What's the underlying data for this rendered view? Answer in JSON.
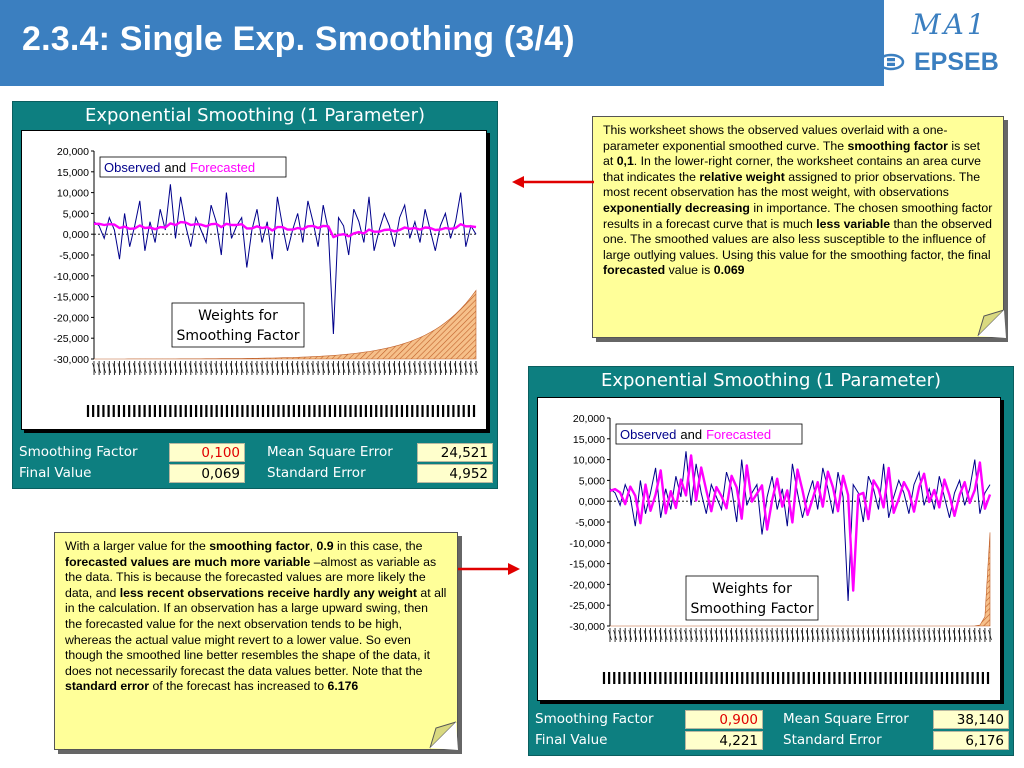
{
  "slide": {
    "title": "2.3.4: Single Exp. Smoothing (3/4)",
    "logo_top": "MA1",
    "logo_bottom": "EPSEB"
  },
  "colors": {
    "header": "#3b7fc0",
    "panel": "#0d7f80",
    "note": "#ffff99",
    "observed": "#00008b",
    "forecast": "#ff00ff",
    "arrow": "#e00000"
  },
  "panel_top": {
    "title": "Exponential Smoothing (1 Parameter)",
    "legend_observed": "Observed",
    "legend_and": "and",
    "legend_forecast": "Forecasted",
    "weights_line1": "Weights for",
    "weights_line2": "Smoothing Factor",
    "stats": {
      "smoothing_factor_label": "Smoothing Factor",
      "smoothing_factor_value": "0,100",
      "final_value_label": "Final Value",
      "final_value_value": "0,069",
      "mse_label": "Mean Square Error",
      "mse_value": "24,521",
      "se_label": "Standard Error",
      "se_value": "4,952"
    }
  },
  "panel_bottom": {
    "title": "Exponential Smoothing (1 Parameter)",
    "legend_observed": "Observed",
    "legend_and": "and",
    "legend_forecast": "Forecasted",
    "weights_line1": "Weights for",
    "weights_line2": "Smoothing Factor",
    "stats": {
      "smoothing_factor_label": "Smoothing Factor",
      "smoothing_factor_value": "0,900",
      "final_value_label": "Final Value",
      "final_value_value": "4,221",
      "mse_label": "Mean Square Error",
      "mse_value": "38,140",
      "se_label": "Standard Error",
      "se_value": "6,176"
    }
  },
  "chart_data": [
    {
      "type": "line",
      "title": "",
      "y_ticks": [
        "20,000",
        "15,000",
        "10,000",
        "5,000",
        "0,000",
        "-5,000",
        "-10,000",
        "-15,000",
        "-20,000",
        "-25,000",
        "-30,000"
      ],
      "ylim": [
        -30,
        20
      ],
      "smoothing_factor": 0.1,
      "series": [
        {
          "name": "Observed",
          "values": [
            3,
            2,
            -1,
            4,
            1,
            -6,
            5,
            -3,
            2,
            8,
            -4,
            3,
            -2,
            6,
            1,
            12,
            -1,
            9,
            2,
            -3,
            4,
            1,
            -2,
            7,
            3,
            -5,
            10,
            -1,
            2,
            4,
            -8,
            1,
            6,
            -2,
            3,
            -6,
            9,
            2,
            -4,
            1,
            5,
            -2,
            8,
            3,
            -3,
            7,
            1,
            -24,
            4,
            2,
            -5,
            6,
            3,
            -2,
            9,
            -4,
            1,
            5,
            2,
            -3,
            4,
            7,
            -1,
            3,
            -2,
            6,
            1,
            -4,
            2,
            5,
            -1,
            3,
            10,
            -3,
            2,
            0
          ]
        },
        {
          "name": "Forecasted",
          "values": [
            2.5,
            2.5,
            2.2,
            2.4,
            2.3,
            1.5,
            1.8,
            1.3,
            1.4,
            2.1,
            1.5,
            1.6,
            1.2,
            1.7,
            1.6,
            2.6,
            2.2,
            2.9,
            2.8,
            2.2,
            2.4,
            2.3,
            1.9,
            2.4,
            2.5,
            1.7,
            2.5,
            2.2,
            2.2,
            2.4,
            1.4,
            1.4,
            1.9,
            1.5,
            1.7,
            0.9,
            1.7,
            1.7,
            1.1,
            1.1,
            1.5,
            1.2,
            1.9,
            2,
            1.5,
            2,
            1.9,
            -0.7,
            -0.2,
            0,
            -0.5,
            0.2,
            0.5,
            0.2,
            1.1,
            0.6,
            0.6,
            1,
            1.1,
            0.7,
            1,
            1.6,
            1.3,
            1.5,
            1.1,
            1.6,
            1.5,
            1,
            1.1,
            1.5,
            1.3,
            1.5,
            2.4,
            1.9,
            1.9,
            1.7
          ]
        }
      ]
    },
    {
      "type": "line",
      "title": "",
      "y_ticks": [
        "20,000",
        "15,000",
        "10,000",
        "5,000",
        "0,000",
        "-5,000",
        "-10,000",
        "-15,000",
        "-20,000",
        "-25,000",
        "-30,000"
      ],
      "ylim": [
        -30,
        20
      ],
      "smoothing_factor": 0.9,
      "series": [
        {
          "name": "Observed",
          "values": [
            3,
            2,
            -1,
            4,
            1,
            -6,
            5,
            -3,
            2,
            8,
            -4,
            3,
            -2,
            6,
            1,
            12,
            -1,
            9,
            2,
            -3,
            4,
            1,
            -2,
            7,
            3,
            -5,
            10,
            -1,
            2,
            4,
            -8,
            1,
            6,
            -2,
            3,
            -6,
            9,
            2,
            -4,
            1,
            5,
            -2,
            8,
            3,
            -3,
            7,
            1,
            -24,
            4,
            2,
            -5,
            6,
            3,
            -2,
            9,
            -4,
            1,
            5,
            2,
            -3,
            4,
            7,
            -1,
            3,
            -2,
            6,
            1,
            -4,
            2,
            5,
            -1,
            3,
            10,
            -3,
            2,
            4
          ]
        },
        {
          "name": "Forecasted",
          "values": [
            2.5,
            2.9,
            2.1,
            -0.7,
            3.5,
            1.3,
            -5.3,
            4,
            -2.3,
            1.6,
            7.4,
            -2.9,
            2.4,
            -1.6,
            5.2,
            1.4,
            11,
            0.2,
            8.1,
            2.6,
            -2.4,
            3.4,
            1.2,
            -1.7,
            6.1,
            3.3,
            -4.2,
            8.6,
            -0.1,
            1.8,
            3.8,
            -6.8,
            0.2,
            5.4,
            -1.3,
            2.6,
            -5.1,
            7.6,
            2.6,
            -3.3,
            0.6,
            4.6,
            -1.3,
            7.1,
            3.4,
            -2.4,
            6.1,
            1.5,
            -21.5,
            1.5,
            2,
            -4.3,
            5,
            3,
            -1.5,
            8,
            -2.8,
            0.6,
            4.6,
            2.3,
            -2.5,
            3.4,
            6.6,
            -0.2,
            2.7,
            -1.5,
            5.2,
            1.4,
            -3.5,
            1.5,
            4.6,
            -0.4,
            2.7,
            9.3,
            -1.8,
            1.6
          ]
        }
      ]
    }
  ],
  "note_top": {
    "segments": [
      {
        "t": "This worksheet shows the observed values overlaid with a one-parameter exponential smoothed curve. The ",
        "b": false
      },
      {
        "t": "smoothing factor",
        "b": true
      },
      {
        "t": " is set at ",
        "b": false
      },
      {
        "t": "0,1",
        "b": true
      },
      {
        "t": ". In the lower-right corner, the worksheet contains an area curve that indicates the ",
        "b": false
      },
      {
        "t": "relative weight",
        "b": true
      },
      {
        "t": " assigned to prior observations. The most recent observation has the most weight, with observations ",
        "b": false
      },
      {
        "t": "exponentially decreasing",
        "b": true
      },
      {
        "t": " in importance. The chosen smoothing factor results in a forecast curve that is much ",
        "b": false
      },
      {
        "t": "less variable",
        "b": true
      },
      {
        "t": " than the observed one. The smoothed values are also less susceptible to the influence of large outlying values. Using this value for the smoothing factor, the final ",
        "b": false
      },
      {
        "t": "forecasted",
        "b": true
      },
      {
        "t": " value is ",
        "b": false
      },
      {
        "t": "0.069",
        "b": true
      }
    ]
  },
  "note_bottom": {
    "segments": [
      {
        "t": "With a larger value for the ",
        "b": false
      },
      {
        "t": "smoothing factor",
        "b": true
      },
      {
        "t": ", ",
        "b": false
      },
      {
        "t": "0.9",
        "b": true
      },
      {
        "t": " in this case, the ",
        "b": false
      },
      {
        "t": "forecasted values are much more variable",
        "b": true
      },
      {
        "t": " –almost as variable as the data. This is because the forecasted values are more likely the data, and ",
        "b": false
      },
      {
        "t": "less recent observations receive hardly any weight",
        "b": true
      },
      {
        "t": " at all in the calculation. If an observation has a large upward swing, then the forecasted value for the next observation tends to be high, whereas the actual value might revert to a lower value. So even though the smoothed line better resembles the shape of the data, it does not necessarily forecast the data values better. Note that the ",
        "b": false
      },
      {
        "t": "standard error",
        "b": true
      },
      {
        "t": " of the forecast has increased to ",
        "b": false
      },
      {
        "t": "6.176",
        "b": true
      }
    ]
  }
}
